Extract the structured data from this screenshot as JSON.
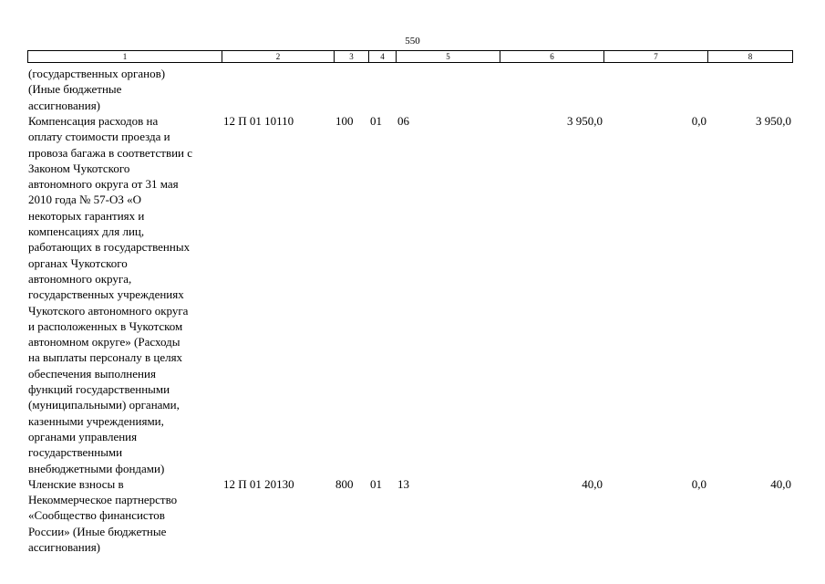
{
  "page_number": "550",
  "table": {
    "header": [
      "1",
      "2",
      "3",
      "4",
      "5",
      "6",
      "7",
      "8"
    ],
    "rows": [
      [
        [
          "(государственных органов)",
          "(Иные бюджетные",
          "ассигнования)"
        ],
        "",
        "",
        "",
        "",
        "",
        "",
        ""
      ],
      [
        [
          "Компенсация расходов на",
          "оплату стоимости проезда и",
          "провоза багажа в соответствии с",
          "Законом Чукотского",
          "автономного округа от 31 мая",
          "2010 года № 57-ОЗ «О",
          "некоторых гарантиях и",
          "компенсациях для лиц,",
          "работающих в государственных",
          "органах Чукотского",
          "автономного округа,",
          "государственных учреждениях",
          "Чукотского автономного округа",
          "и расположенных в Чукотском",
          "автономном округе» (Расходы",
          "на выплаты персоналу в целях",
          "обеспечения выполнения",
          "функций государственными",
          "(муниципальными) органами,",
          "казенными учреждениями,",
          "органами управления",
          "государственными",
          "внебюджетными фондами)"
        ],
        "12 П 01 10110",
        "100",
        "01",
        "06",
        "3 950,0",
        "0,0",
        "3 950,0"
      ],
      [
        [
          "Членские взносы в",
          "Некоммерческое партнерство",
          "«Сообщество финансистов",
          "России» (Иные бюджетные",
          "ассигнования)"
        ],
        "12 П 01 20130",
        "800",
        "01",
        "13",
        "40,0",
        "0,0",
        "40,0"
      ]
    ]
  }
}
